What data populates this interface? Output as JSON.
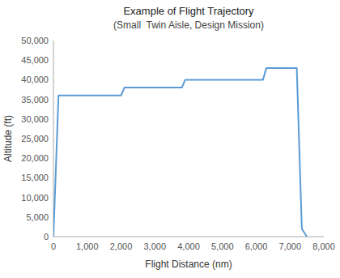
{
  "chart_data": {
    "type": "line",
    "title": "Example of Flight Trajectory",
    "subtitle": "(Small  Twin Aisle, Design Mission)",
    "x_label": "Flight Distance (nm)",
    "y_label": "Altitude (ft)",
    "x": [
      0,
      150,
      2000,
      2100,
      3800,
      3900,
      6200,
      6300,
      7200,
      7350,
      7500
    ],
    "values": [
      0,
      36000,
      36000,
      38000,
      38000,
      40000,
      40000,
      43000,
      43000,
      2000,
      0
    ],
    "color": "#5B9BD5",
    "xlim": [
      0,
      8000
    ],
    "ylim": [
      0,
      50000
    ],
    "xticks": [
      0,
      {
        "value": 1000,
        "label": "1,000"
      },
      {
        "value": 2000,
        "label": "2,000"
      },
      {
        "value": 3000,
        "label": "3,000"
      },
      {
        "value": 4000,
        "label": "4,000"
      },
      {
        "value": 5000,
        "label": "5,000"
      },
      {
        "value": 6000,
        "label": "6,000"
      },
      {
        "value": 7000,
        "label": "7,000"
      },
      {
        "value": 8000,
        "label": "8,000"
      }
    ],
    "yticks": [
      0,
      {
        "value": 5000,
        "label": "5,000"
      },
      {
        "value": 10000,
        "label": "10,000"
      },
      {
        "value": 15000,
        "label": "15,000"
      },
      {
        "value": 20000,
        "label": "20,000"
      },
      {
        "value": 25000,
        "label": "25,000"
      },
      {
        "value": 30000,
        "label": "30,000"
      },
      {
        "value": 35000,
        "label": "35,000"
      },
      {
        "value": 40000,
        "label": "40,000"
      },
      {
        "value": 45000,
        "label": "45,000"
      },
      {
        "value": 50000,
        "label": "50,000"
      }
    ],
    "grid": false
  }
}
